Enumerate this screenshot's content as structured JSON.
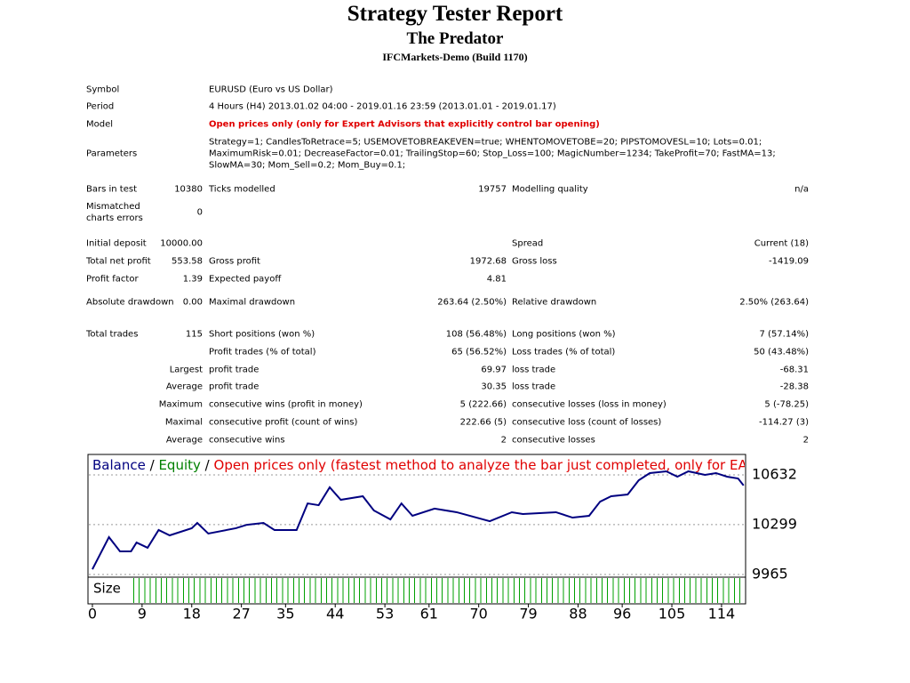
{
  "header": {
    "title": "Strategy Tester Report",
    "subtitle": "The Predator",
    "server": "IFCMarkets-Demo (Build 1170)"
  },
  "settings": {
    "symbol": {
      "label": "Symbol",
      "value": "EURUSD (Euro vs US Dollar)"
    },
    "period": {
      "label": "Period",
      "value": "4 Hours (H4) 2013.01.02 04:00 - 2019.01.16 23:59 (2013.01.01 - 2019.01.17)"
    },
    "model": {
      "label": "Model",
      "value": "Open prices only (only for Expert Advisors that explicitly control bar opening)"
    },
    "parameters": {
      "label": "Parameters",
      "value": "Strategy=1; CandlesToRetrace=5; USEMOVETOBREAKEVEN=true; WHENTOMOVETOBE=20; PIPSTOMOVESL=10; Lots=0.01; MaximumRisk=0.01; DecreaseFactor=0.01; TrailingStop=60; Stop_Loss=100; MagicNumber=1234; TakeProfit=70; FastMA=13; SlowMA=30; Mom_Sell=0.2; Mom_Buy=0.1;"
    }
  },
  "results": {
    "rows": [
      [
        "Bars in test",
        "10380",
        "Ticks modelled",
        "19757",
        "Modelling quality",
        "n/a"
      ],
      [
        "Mismatched charts errors",
        "0"
      ],
      [
        "Initial deposit",
        "10000.00",
        "Spread",
        "Current (18)"
      ],
      [
        "Total net profit",
        "553.58",
        "Gross profit",
        "1972.68",
        "Gross loss",
        "-1419.09"
      ],
      [
        "Profit factor",
        "1.39",
        "Expected payoff",
        "4.81"
      ],
      [
        "Absolute drawdown",
        "0.00",
        "Maximal drawdown",
        "263.64 (2.50%)",
        "Relative drawdown",
        "2.50% (263.64)"
      ],
      [
        "Total trades",
        "115",
        "Short positions (won %)",
        "108 (56.48%)",
        "Long positions (won %)",
        "7 (57.14%)"
      ],
      [
        "Profit trades (% of total)",
        "65 (56.52%)",
        "Loss trades (% of total)",
        "50 (43.48%)"
      ],
      [
        "Largest",
        "profit trade",
        "69.97",
        "loss trade",
        "-68.31"
      ],
      [
        "Average",
        "profit trade",
        "30.35",
        "loss trade",
        "-28.38"
      ],
      [
        "Maximum",
        "consecutive wins (profit in money)",
        "5 (222.66)",
        "consecutive losses (loss in money)",
        "5 (-78.25)"
      ],
      [
        "Maximal",
        "consecutive profit (count of wins)",
        "222.66 (5)",
        "consecutive loss (count of losses)",
        "-114.27 (3)"
      ],
      [
        "Average",
        "consecutive wins",
        "2",
        "consecutive losses",
        "2"
      ]
    ]
  },
  "chart": {
    "type": "line",
    "legend_separator": "/",
    "equity_label": "Equity",
    "equity_color": "#008000",
    "model_label": "Open prices only (fastest method to analyze the bar just completed, only for EAs that",
    "model_color": "#e00000",
    "size_label": "Size",
    "x": [
      0,
      3,
      5,
      7,
      8,
      10,
      12,
      14,
      18,
      19,
      21,
      26,
      28,
      31,
      33,
      37,
      39,
      41,
      43,
      45,
      47,
      49,
      51,
      54,
      56,
      58,
      62,
      66,
      72,
      76,
      78,
      84,
      87,
      90,
      92,
      94,
      97,
      99,
      101,
      104,
      106,
      108,
      111,
      113,
      115,
      117,
      118
    ],
    "series": [
      {
        "name": "Balance",
        "color": "#000080",
        "values": [
          10000,
          10215,
          10120,
          10120,
          10179,
          10144,
          10263,
          10227,
          10275,
          10310,
          10239,
          10275,
          10298,
          10310,
          10263,
          10263,
          10441,
          10429,
          10549,
          10465,
          10477,
          10489,
          10394,
          10334,
          10441,
          10358,
          10406,
          10382,
          10322,
          10382,
          10370,
          10382,
          10346,
          10358,
          10453,
          10489,
          10501,
          10596,
          10644,
          10656,
          10620,
          10656,
          10632,
          10644,
          10620,
          10608,
          10561
        ]
      }
    ],
    "xlim": [
      -0.64,
      118.2
    ],
    "ylim": [
      9953,
      10763
    ],
    "xticks": [
      0,
      9,
      18,
      27,
      35,
      44,
      53,
      61,
      70,
      79,
      88,
      96,
      105,
      114
    ],
    "yticks": [
      9965,
      10299,
      10632
    ],
    "grid": true
  }
}
